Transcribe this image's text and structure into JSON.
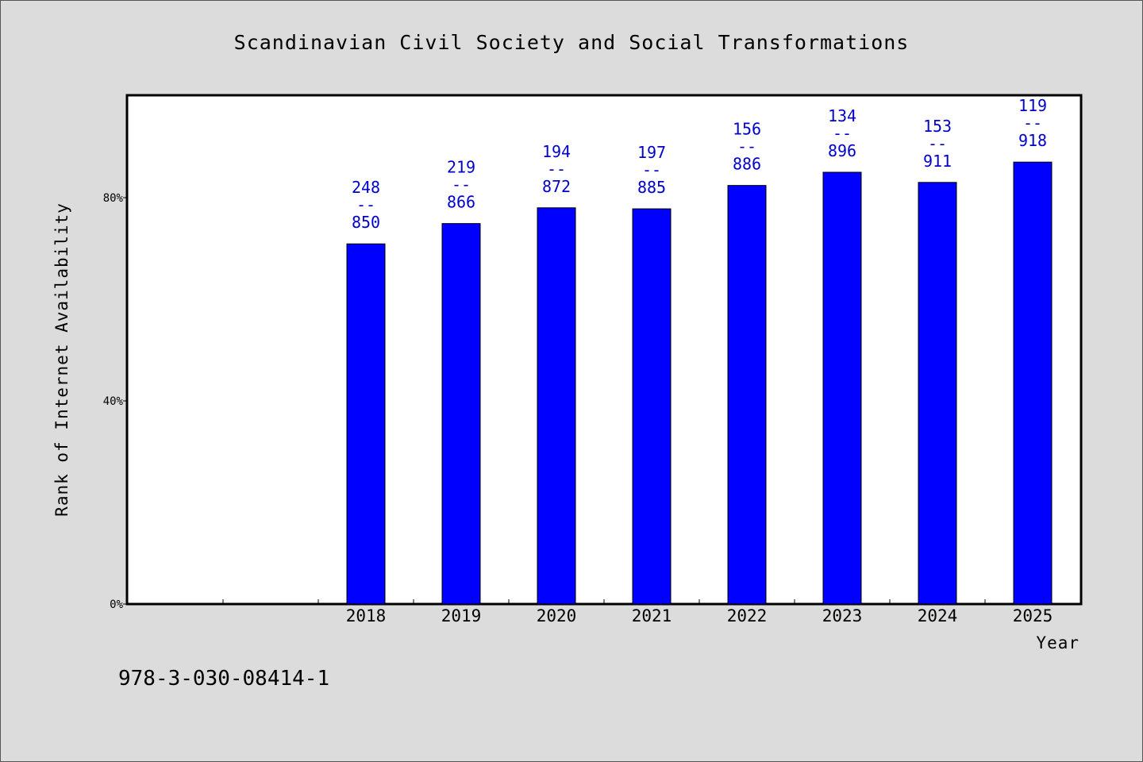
{
  "chart_data": {
    "type": "bar",
    "title": "Scandinavian Civil Society and Social Transformations",
    "xlabel": "Year",
    "ylabel": "Rank of Internet Availability",
    "categories": [
      "",
      "",
      "2018",
      "2019",
      "2020",
      "2021",
      "2022",
      "2023",
      "2024",
      "2025"
    ],
    "values": [
      null,
      null,
      70.9,
      74.9,
      78.0,
      77.8,
      82.4,
      85.0,
      83.0,
      87.0
    ],
    "data_labels": [
      null,
      null,
      [
        "248",
        "--",
        "850"
      ],
      [
        "219",
        "--",
        "866"
      ],
      [
        "194",
        "--",
        "872"
      ],
      [
        "197",
        "--",
        "885"
      ],
      [
        "156",
        "--",
        "886"
      ],
      [
        "134",
        "--",
        "896"
      ],
      [
        "153",
        "--",
        "911"
      ],
      [
        "119",
        "--",
        "918"
      ]
    ],
    "ylim": [
      0,
      100
    ],
    "yticks": [
      0,
      40,
      80
    ],
    "ytick_labels": [
      "0%",
      "40%",
      "80%"
    ],
    "grid": false,
    "bar_color": "#0000ff",
    "label_color": "#0000cd",
    "background_color": "#dcdcdc",
    "plot_background": "#ffffff"
  },
  "footer": {
    "isbn": "978-3-030-08414-1"
  }
}
